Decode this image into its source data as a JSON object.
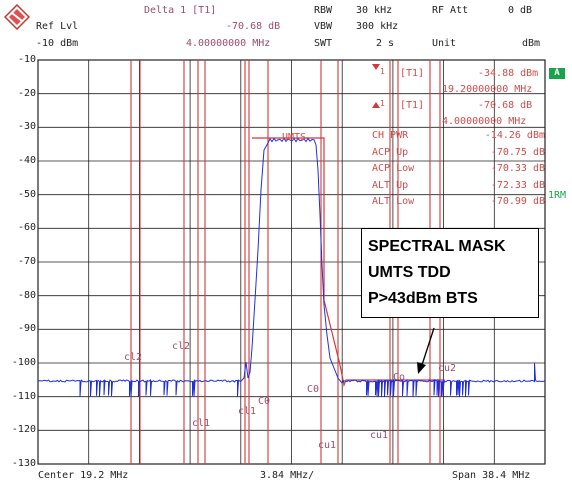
{
  "header": {
    "delta_label": "Delta 1 [T1]",
    "ref_lvl_label": "Ref Lvl",
    "ref_lvl_value": "-10 dBm",
    "delta_level": "-70.68 dB",
    "delta_freq": "4.00000000 MHz",
    "rbw_label": "RBW",
    "rbw_value": "30 kHz",
    "vbw_label": "VBW",
    "vbw_value": "300 kHz",
    "swt_label": "SWT",
    "swt_value": "2 s",
    "rf_att_label": "RF Att",
    "rf_att_value": "0 dB",
    "unit_label": "Unit",
    "unit_value": "dBm"
  },
  "markers": {
    "m1_tag": "1",
    "m1_trace": "[T1]",
    "m1_level": "-34.88 dBm",
    "m1_freq": "19.20000000 MHz",
    "m2_tag": "1",
    "m2_trace": "[T1]",
    "m2_level": "-70.68 dB",
    "m2_freq": "4.00000000 MHz"
  },
  "measurements": [
    {
      "label": "CH PWR",
      "value": "-14.26 dBm"
    },
    {
      "label": "ACP Up",
      "value": "-70.75 dB"
    },
    {
      "label": "ACP Low",
      "value": "-70.33 dB"
    },
    {
      "label": "ALT Up",
      "value": "-72.33 dB"
    },
    {
      "label": "ALT Low",
      "value": "-70.99 dB"
    }
  ],
  "side": {
    "badge": "A",
    "rm_label": "1RM"
  },
  "y_ticks": [
    "-10",
    "-20",
    "-30",
    "-40",
    "-50",
    "-60",
    "-70",
    "-80",
    "-90",
    "-100",
    "-110",
    "-120",
    "-130"
  ],
  "footer": {
    "center": "Center 19.2 MHz",
    "div": "3.84 MHz/",
    "span": "Span 38.4 MHz"
  },
  "plot_labels": {
    "umts": "UMTS",
    "cl2_left": "cl2",
    "cl2_mid": "cl2",
    "cl1_a": "cl1",
    "cl1_b": "cl1",
    "c0_left": "C0",
    "c0_mid": "C0",
    "cu1_a": "cu1",
    "cu1_b": "cu1",
    "cu2": "cu2",
    "co_right": "Co"
  },
  "mask_note": {
    "line1": "SPECTRAL MASK",
    "line2": "UMTS TDD",
    "line3": "P>43dBm BTS"
  },
  "colors": {
    "trace": "#1f2fe0",
    "limit": "#d23a3a",
    "grid": "#222222"
  }
}
